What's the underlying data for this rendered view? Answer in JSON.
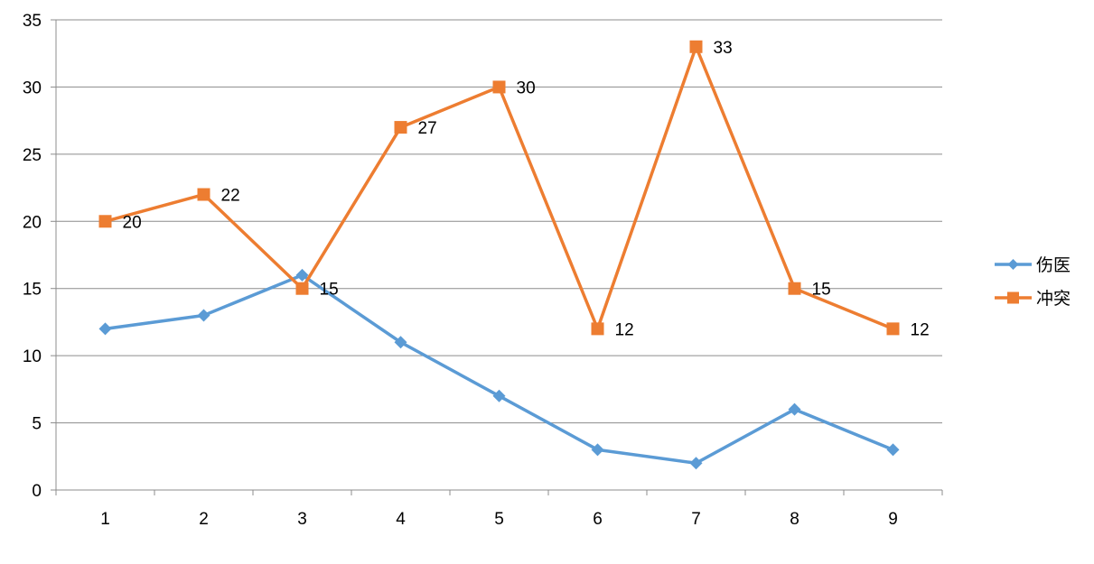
{
  "chart_data": {
    "type": "line",
    "title": "",
    "xlabel": "",
    "ylabel": "",
    "categories": [
      "1",
      "2",
      "3",
      "4",
      "5",
      "6",
      "7",
      "8",
      "9"
    ],
    "ylim": [
      0,
      35
    ],
    "yticks": [
      0,
      5,
      10,
      15,
      20,
      25,
      30,
      35
    ],
    "grid": true,
    "legend_position": "right",
    "series": [
      {
        "name": "伤医",
        "values": [
          12,
          13,
          16,
          11,
          7,
          3,
          2,
          6,
          3
        ],
        "color": "#5B9BD5",
        "marker": "diamond",
        "show_data_labels": false
      },
      {
        "name": "冲突",
        "values": [
          20,
          22,
          15,
          27,
          30,
          12,
          33,
          15,
          12
        ],
        "color": "#ED7D31",
        "marker": "square",
        "show_data_labels": true
      }
    ]
  }
}
